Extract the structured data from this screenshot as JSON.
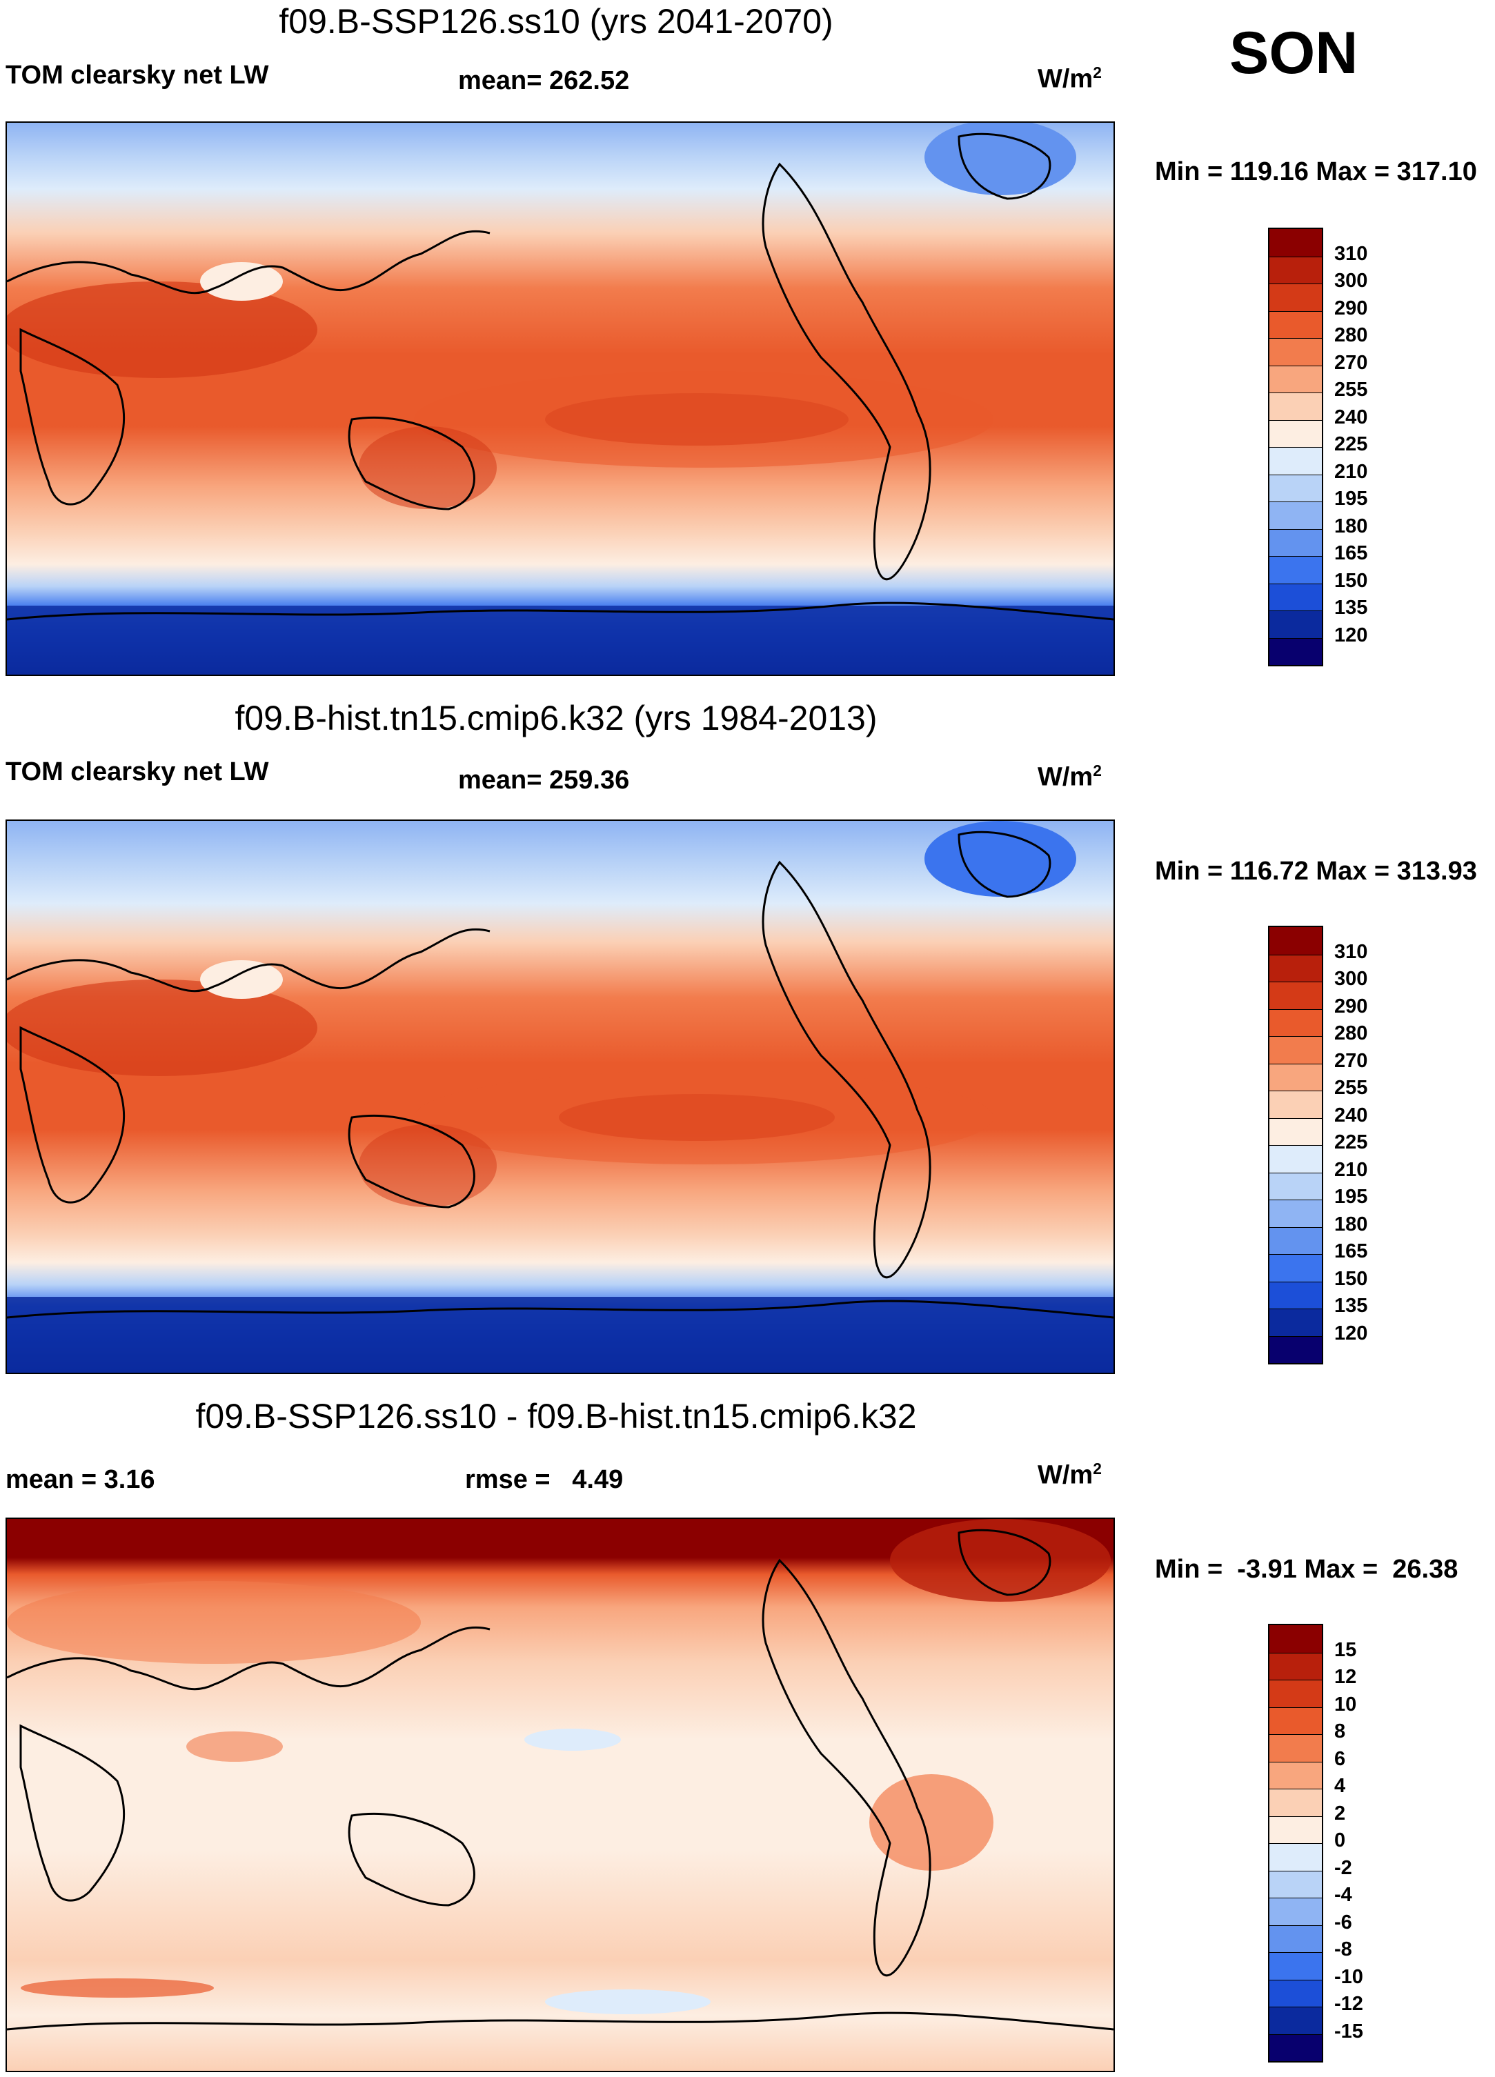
{
  "season": "SON",
  "colors": {
    "abs_scale": [
      "#08006e",
      "#0b2a9e",
      "#1c4fd8",
      "#3b74ee",
      "#6393ef",
      "#8fb4f3",
      "#b9d3f7",
      "#deecfb",
      "#fdeee2",
      "#fbd0b5",
      "#f8a67e",
      "#f27c4d",
      "#e95a2c",
      "#d43a17",
      "#b8200c",
      "#8b0000"
    ],
    "diff_scale": [
      "#08006e",
      "#0b2a9e",
      "#1c4fd8",
      "#3b74ee",
      "#6393ef",
      "#8fb4f3",
      "#b9d3f7",
      "#deecfb",
      "#fdeee2",
      "#fbd0b5",
      "#f8a67e",
      "#f27c4d",
      "#e95a2c",
      "#d43a17",
      "#b8200c",
      "#8b0000"
    ]
  },
  "panels": [
    {
      "title": "f09.B-SSP126.ss10 (yrs 2041-2070)",
      "left_label": "TOM clearsky net LW",
      "center_label": "mean= 262.52",
      "units": "W/m",
      "units_sup": "2",
      "minmax": "Min = 119.16 Max = 317.10",
      "ticks": [
        "310",
        "300",
        "290",
        "280",
        "270",
        "255",
        "240",
        "225",
        "210",
        "195",
        "180",
        "165",
        "150",
        "135",
        "120"
      ]
    },
    {
      "title": "f09.B-hist.tn15.cmip6.k32 (yrs 1984-2013)",
      "left_label": "TOM clearsky net LW",
      "center_label": "mean= 259.36",
      "units": "W/m",
      "units_sup": "2",
      "minmax": "Min = 116.72 Max = 313.93",
      "ticks": [
        "310",
        "300",
        "290",
        "280",
        "270",
        "255",
        "240",
        "225",
        "210",
        "195",
        "180",
        "165",
        "150",
        "135",
        "120"
      ]
    },
    {
      "title": "f09.B-SSP126.ss10 - f09.B-hist.tn15.cmip6.k32",
      "left_label": "mean =   3.16",
      "center_label": "rmse =   4.49",
      "units": "W/m",
      "units_sup": "2",
      "minmax": "Min =  -3.91 Max =  26.38",
      "ticks": [
        "15",
        "12",
        "10",
        "8",
        "6",
        "4",
        "2",
        "0",
        "-2",
        "-4",
        "-6",
        "-8",
        "-10",
        "-12",
        "-15"
      ]
    }
  ]
}
